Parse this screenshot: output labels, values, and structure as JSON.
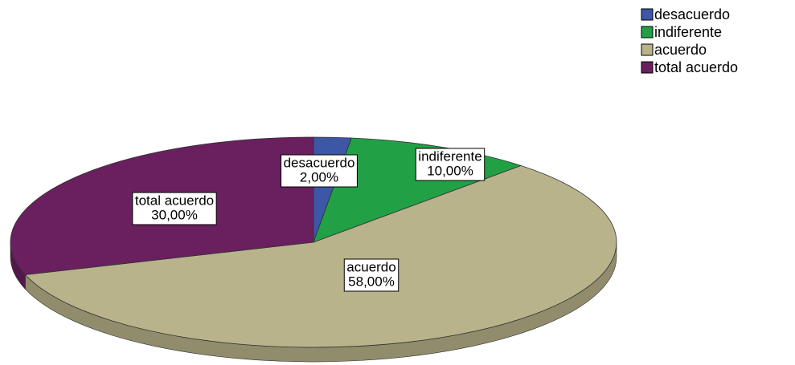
{
  "chart_data": {
    "type": "pie",
    "categories": [
      "desacuerdo",
      "indiferente",
      "acuerdo",
      "total acuerdo"
    ],
    "values": [
      2,
      10,
      58,
      30
    ],
    "value_labels": [
      "2,00%",
      "10,00%",
      "58,00%",
      "30,00%"
    ],
    "colors": [
      "#3b57a6",
      "#22a046",
      "#b8b38a",
      "#6a1f5f"
    ],
    "legend": "top-right"
  }
}
